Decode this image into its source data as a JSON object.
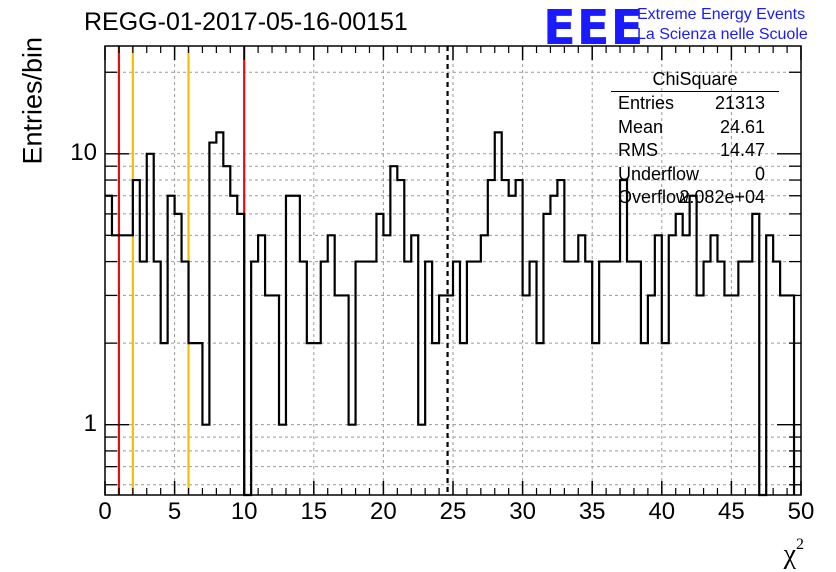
{
  "header": {
    "title": "REGG-01-2017-05-16-00151",
    "brand_logo": "EEE",
    "brand_line1": "Extreme Energy Events",
    "brand_line2": "La Scienza nelle Scuole"
  },
  "stats": {
    "title": "ChiSquare",
    "rows": [
      {
        "key": "Entries",
        "value": "21313"
      },
      {
        "key": "Mean",
        "value": "24.61"
      },
      {
        "key": "RMS",
        "value": "14.47"
      },
      {
        "key": "Underflow",
        "value": "0"
      },
      {
        "key": "Overflow",
        "value": "2.082e+04"
      }
    ]
  },
  "chart_data": {
    "type": "histogram",
    "ylabel": "Entries/bin",
    "xlabel": "χ",
    "xlabel_sup": "2",
    "xlim": [
      0,
      50
    ],
    "ylim": [
      0.55,
      25
    ],
    "yscale": "log",
    "grid": true,
    "bin_width": 0.5,
    "x_ticks": [
      "0",
      "5",
      "10",
      "15",
      "20",
      "25",
      "30",
      "35",
      "40",
      "45",
      "50"
    ],
    "y_ticks": [
      "1",
      "10"
    ],
    "values": [
      7,
      5,
      5,
      5,
      8,
      4,
      10,
      4,
      2,
      7,
      6,
      4,
      2,
      2,
      1,
      11,
      12,
      9,
      7,
      6,
      0,
      4,
      5,
      3,
      3,
      1,
      7,
      7,
      4,
      2,
      2,
      4,
      5,
      3,
      3,
      1,
      4,
      4,
      4,
      6,
      5,
      9,
      8,
      4,
      5,
      1,
      4,
      2,
      3,
      3,
      4,
      2,
      4,
      4,
      5,
      8,
      12,
      8,
      7,
      8,
      3,
      4,
      2,
      6,
      7,
      8,
      4,
      4,
      5,
      4,
      2,
      4,
      4,
      4,
      8,
      4,
      4,
      2,
      3,
      5,
      2,
      5,
      6,
      5,
      7,
      3,
      4,
      5,
      4,
      3,
      3,
      4,
      4,
      6,
      0,
      5,
      4,
      3,
      3
    ],
    "vlines": [
      {
        "x": 1,
        "color": "#dd1111",
        "style": "solid"
      },
      {
        "x": 2,
        "color": "#f2c000",
        "style": "solid"
      },
      {
        "x": 6,
        "color": "#f2c000",
        "style": "solid"
      },
      {
        "x": 10,
        "color": "#dd1111",
        "style": "solid"
      },
      {
        "x": 24.61,
        "color": "#000000",
        "style": "dashed"
      }
    ]
  }
}
